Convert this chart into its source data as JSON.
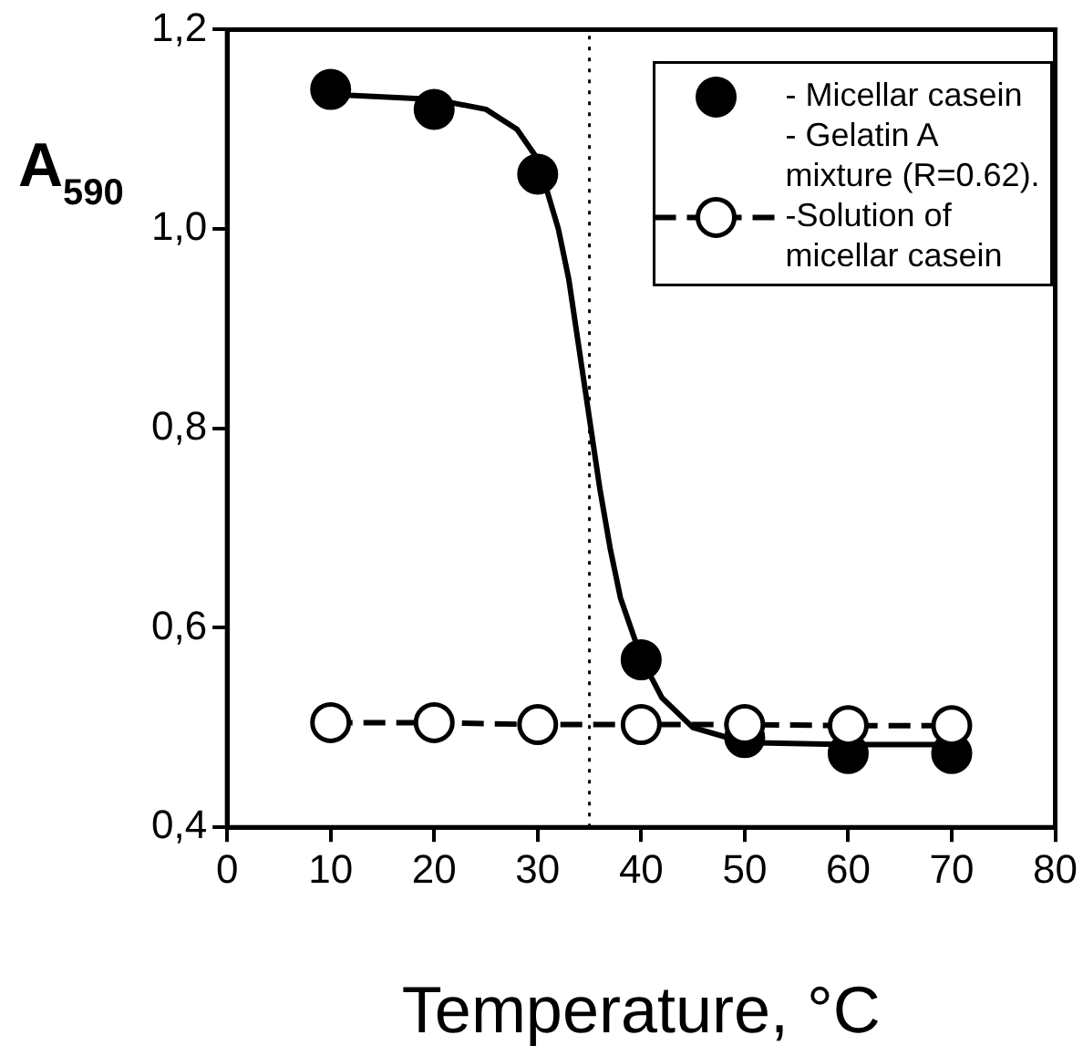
{
  "chart_data": {
    "type": "scatter",
    "xlabel": "Temperature, °C",
    "ylabel": "A$_{590}$",
    "xlim": [
      0,
      80
    ],
    "xticks": [
      0,
      10,
      20,
      30,
      40,
      50,
      60,
      70,
      80
    ],
    "ylim": [
      0.4,
      1.2
    ],
    "yticks": [
      {
        "value": 0.4,
        "label": "0,4"
      },
      {
        "value": 0.6,
        "label": "0,6"
      },
      {
        "value": 0.8,
        "label": "0,8"
      },
      {
        "value": 1.0,
        "label": "1,0"
      },
      {
        "value": 1.2,
        "label": "1,2"
      }
    ],
    "grid": false,
    "legend": "top right",
    "series": [
      {
        "name": "- Micellar casein - Gelatin A mixture (R=0.62).",
        "type": "scatter",
        "color": "#000000",
        "marker": "circle",
        "x": [
          10,
          20,
          30,
          40,
          50,
          60,
          70
        ],
        "values": [
          1.14,
          1.12,
          1.055,
          0.568,
          0.49,
          0.474,
          0.474
        ]
      },
      {
        "type": "line",
        "color": "#000000",
        "marker": "none",
        "line_style": "solid",
        "x": [
          10,
          20,
          25,
          28,
          30,
          32,
          33,
          34,
          35,
          36,
          37,
          38,
          40,
          42,
          45,
          50,
          60,
          70
        ],
        "values": [
          1.135,
          1.13,
          1.12,
          1.1,
          1.07,
          1.0,
          0.95,
          0.88,
          0.81,
          0.74,
          0.68,
          0.63,
          0.57,
          0.53,
          0.5,
          0.485,
          0.483,
          0.483
        ]
      },
      {
        "name": "-Solution of micellar casein",
        "type": "line",
        "color": "#000000",
        "marker": "circle",
        "line_style": "dashed",
        "x": [
          10,
          20,
          30,
          40,
          50,
          60,
          70
        ],
        "values": [
          0.505,
          0.505,
          0.503,
          0.503,
          0.503,
          0.502,
          0.502
        ]
      }
    ],
    "ref_lines": [
      {
        "axis": "x",
        "value": 35,
        "line_style": "dotted",
        "color": "#000000"
      }
    ]
  }
}
